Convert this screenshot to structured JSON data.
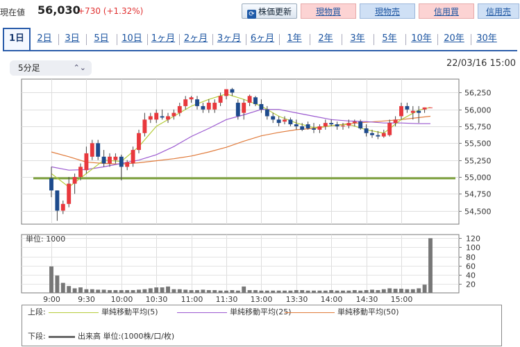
{
  "header": {
    "price_label": "現在値",
    "price": "56,030",
    "change": "+730 (+1.32%)",
    "update_label": "株価更新",
    "update_icon": "refresh-icon",
    "buttons": [
      {
        "label": "現物買",
        "kind": "buy"
      },
      {
        "label": "現物売",
        "kind": "sell"
      },
      {
        "label": "信用買",
        "kind": "buy"
      },
      {
        "label": "信用売",
        "kind": "sell"
      }
    ]
  },
  "tabs": [
    "1日",
    "2日",
    "3日",
    "5日",
    "10日",
    "1ヶ月",
    "2ヶ月",
    "3ヶ月",
    "6ヶ月",
    "1年",
    "2年",
    "3年",
    "5年",
    "10年",
    "20年",
    "30年"
  ],
  "active_tab": 0,
  "interval": {
    "label": "5分足",
    "icon": "chevron-updown-icon"
  },
  "datetime": "22/03/16 15:00",
  "colors": {
    "up": "#e8383d",
    "down": "#1d4a8c",
    "ma5": "#b5cc3a",
    "ma25": "#9b59d0",
    "ma50": "#e07a3a",
    "support": "#7ca03c",
    "volume": "#777777"
  },
  "chart_data": [
    {
      "type": "candlestick",
      "title": "",
      "y_ticks": [
        "56,250",
        "56,000",
        "55,750",
        "55,500",
        "55,250",
        "55,000",
        "54,750",
        "54,500"
      ],
      "y_tick_values": [
        56250,
        56000,
        55750,
        55500,
        55250,
        55000,
        54750,
        54500
      ],
      "ylim": [
        54300,
        56450
      ],
      "x_ticks": [
        "9:00",
        "9:30",
        "10:00",
        "10:30",
        "11:00",
        "11:30",
        "13:00",
        "13:30",
        "14:00",
        "14:30",
        "15:00"
      ],
      "support_level": 54980,
      "candles": [
        {
          "o": 54980,
          "h": 55150,
          "l": 54700,
          "c": 54800
        },
        {
          "o": 54800,
          "h": 54800,
          "l": 54350,
          "c": 54500
        },
        {
          "o": 54500,
          "h": 54650,
          "l": 54450,
          "c": 54600
        },
        {
          "o": 54600,
          "h": 55000,
          "l": 54550,
          "c": 54900
        },
        {
          "o": 54900,
          "h": 55050,
          "l": 54750,
          "c": 55000
        },
        {
          "o": 55000,
          "h": 55200,
          "l": 54950,
          "c": 55150
        },
        {
          "o": 55100,
          "h": 55450,
          "l": 55050,
          "c": 55350
        },
        {
          "o": 55300,
          "h": 55550,
          "l": 55250,
          "c": 55500
        },
        {
          "o": 55500,
          "h": 55550,
          "l": 55250,
          "c": 55300
        },
        {
          "o": 55300,
          "h": 55400,
          "l": 55150,
          "c": 55200
        },
        {
          "o": 55200,
          "h": 55350,
          "l": 55150,
          "c": 55300
        },
        {
          "o": 55250,
          "h": 55350,
          "l": 55200,
          "c": 55300
        },
        {
          "o": 55300,
          "h": 55330,
          "l": 54950,
          "c": 55150
        },
        {
          "o": 55150,
          "h": 55250,
          "l": 55100,
          "c": 55220
        },
        {
          "o": 55200,
          "h": 55450,
          "l": 55150,
          "c": 55400
        },
        {
          "o": 55400,
          "h": 55700,
          "l": 55350,
          "c": 55650
        },
        {
          "o": 55650,
          "h": 55950,
          "l": 55600,
          "c": 55850
        },
        {
          "o": 55850,
          "h": 55950,
          "l": 55800,
          "c": 55900
        },
        {
          "o": 55850,
          "h": 56000,
          "l": 55800,
          "c": 55950
        },
        {
          "o": 55900,
          "h": 56000,
          "l": 55850,
          "c": 55880
        },
        {
          "o": 55850,
          "h": 55950,
          "l": 55800,
          "c": 55900
        },
        {
          "o": 55900,
          "h": 56000,
          "l": 55850,
          "c": 55950
        },
        {
          "o": 55950,
          "h": 56100,
          "l": 55900,
          "c": 56050
        },
        {
          "o": 56050,
          "h": 56200,
          "l": 56000,
          "c": 56150
        },
        {
          "o": 56150,
          "h": 56200,
          "l": 56100,
          "c": 56180
        },
        {
          "o": 56150,
          "h": 56200,
          "l": 56000,
          "c": 56050
        },
        {
          "o": 56050,
          "h": 56100,
          "l": 55950,
          "c": 56000
        },
        {
          "o": 56000,
          "h": 56150,
          "l": 55950,
          "c": 56100
        },
        {
          "o": 56000,
          "h": 56150,
          "l": 55950,
          "c": 56100
        },
        {
          "o": 56100,
          "h": 56250,
          "l": 56050,
          "c": 56200
        },
        {
          "o": 56200,
          "h": 56300,
          "l": 56150,
          "c": 56300
        },
        {
          "o": 56300,
          "h": 56320,
          "l": 56200,
          "c": 56250
        },
        {
          "o": 56100,
          "h": 56150,
          "l": 55850,
          "c": 55900
        },
        {
          "o": 55950,
          "h": 56150,
          "l": 55850,
          "c": 56100
        },
        {
          "o": 56100,
          "h": 56220,
          "l": 56050,
          "c": 56200
        },
        {
          "o": 56180,
          "h": 56200,
          "l": 56050,
          "c": 56080
        },
        {
          "o": 56080,
          "h": 56150,
          "l": 55950,
          "c": 56000
        },
        {
          "o": 56000,
          "h": 56050,
          "l": 55850,
          "c": 55900
        },
        {
          "o": 55900,
          "h": 55950,
          "l": 55800,
          "c": 55850
        },
        {
          "o": 55850,
          "h": 55900,
          "l": 55750,
          "c": 55800
        },
        {
          "o": 55820,
          "h": 55900,
          "l": 55780,
          "c": 55850
        },
        {
          "o": 55850,
          "h": 55880,
          "l": 55750,
          "c": 55780
        },
        {
          "o": 55780,
          "h": 55850,
          "l": 55700,
          "c": 55750
        },
        {
          "o": 55750,
          "h": 55800,
          "l": 55680,
          "c": 55700
        },
        {
          "o": 55780,
          "h": 55820,
          "l": 55700,
          "c": 55720
        },
        {
          "o": 55720,
          "h": 55800,
          "l": 55650,
          "c": 55700
        },
        {
          "o": 55700,
          "h": 55780,
          "l": 55650,
          "c": 55750
        },
        {
          "o": 55750,
          "h": 55850,
          "l": 55700,
          "c": 55800
        },
        {
          "o": 55800,
          "h": 55850,
          "l": 55750,
          "c": 55780
        },
        {
          "o": 55780,
          "h": 55820,
          "l": 55700,
          "c": 55750
        },
        {
          "o": 55750,
          "h": 55800,
          "l": 55700,
          "c": 55760
        },
        {
          "o": 55760,
          "h": 55850,
          "l": 55720,
          "c": 55800
        },
        {
          "o": 55800,
          "h": 55850,
          "l": 55750,
          "c": 55820
        },
        {
          "o": 55820,
          "h": 55850,
          "l": 55700,
          "c": 55720
        },
        {
          "o": 55720,
          "h": 55780,
          "l": 55600,
          "c": 55650
        },
        {
          "o": 55650,
          "h": 55700,
          "l": 55580,
          "c": 55620
        },
        {
          "o": 55620,
          "h": 55680,
          "l": 55560,
          "c": 55600
        },
        {
          "o": 55600,
          "h": 55700,
          "l": 55580,
          "c": 55650
        },
        {
          "o": 55620,
          "h": 55850,
          "l": 55600,
          "c": 55800
        },
        {
          "o": 55800,
          "h": 55900,
          "l": 55750,
          "c": 55850
        },
        {
          "o": 55900,
          "h": 56100,
          "l": 55850,
          "c": 56050
        },
        {
          "o": 56050,
          "h": 56100,
          "l": 55950,
          "c": 56000
        },
        {
          "o": 55950,
          "h": 56050,
          "l": 55850,
          "c": 55980
        },
        {
          "o": 55980,
          "h": 56050,
          "l": 55800,
          "c": 55950
        },
        {
          "o": 56000,
          "h": 56030,
          "l": 55950,
          "c": 56030
        },
        {
          "o": 56030,
          "h": 56030,
          "l": 56030,
          "c": 56030
        }
      ],
      "ma5": [
        [
          0,
          55050
        ],
        [
          3,
          54850
        ],
        [
          6,
          55050
        ],
        [
          9,
          55250
        ],
        [
          12,
          55230
        ],
        [
          15,
          55450
        ],
        [
          18,
          55750
        ],
        [
          21,
          55900
        ],
        [
          24,
          56050
        ],
        [
          27,
          56150
        ],
        [
          30,
          56230
        ],
        [
          33,
          56150
        ],
        [
          36,
          56050
        ],
        [
          39,
          55900
        ],
        [
          42,
          55800
        ],
        [
          45,
          55730
        ],
        [
          48,
          55760
        ],
        [
          51,
          55780
        ],
        [
          54,
          55700
        ],
        [
          57,
          55650
        ],
        [
          60,
          55850
        ],
        [
          63,
          55990
        ],
        [
          65,
          56030
        ]
      ],
      "ma25": [
        [
          0,
          55150
        ],
        [
          3,
          55100
        ],
        [
          6,
          55110
        ],
        [
          9,
          55150
        ],
        [
          12,
          55200
        ],
        [
          15,
          55250
        ],
        [
          18,
          55330
        ],
        [
          21,
          55450
        ],
        [
          24,
          55600
        ],
        [
          27,
          55720
        ],
        [
          30,
          55850
        ],
        [
          33,
          55920
        ],
        [
          36,
          56000
        ],
        [
          39,
          56000
        ],
        [
          42,
          55950
        ],
        [
          45,
          55900
        ],
        [
          48,
          55850
        ],
        [
          51,
          55830
        ],
        [
          54,
          55820
        ],
        [
          57,
          55800
        ],
        [
          60,
          55800
        ],
        [
          63,
          55790
        ],
        [
          65,
          55790
        ]
      ],
      "ma50": [
        [
          0,
          55370
        ],
        [
          3,
          55300
        ],
        [
          6,
          55220
        ],
        [
          9,
          55200
        ],
        [
          12,
          55190
        ],
        [
          15,
          55210
        ],
        [
          18,
          55240
        ],
        [
          21,
          55270
        ],
        [
          24,
          55310
        ],
        [
          27,
          55370
        ],
        [
          30,
          55440
        ],
        [
          33,
          55530
        ],
        [
          36,
          55610
        ],
        [
          39,
          55660
        ],
        [
          42,
          55700
        ],
        [
          45,
          55720
        ],
        [
          48,
          55760
        ],
        [
          51,
          55790
        ],
        [
          54,
          55810
        ],
        [
          57,
          55830
        ],
        [
          60,
          55850
        ],
        [
          63,
          55880
        ],
        [
          65,
          55900
        ]
      ]
    },
    {
      "type": "bar",
      "title": "単位: 1000",
      "y_ticks": [
        "120",
        "100",
        "80",
        "60",
        "40",
        "20"
      ],
      "y_tick_values": [
        120,
        100,
        80,
        60,
        40,
        20
      ],
      "ylim": [
        0,
        128
      ],
      "values": [
        58,
        38,
        22,
        15,
        10,
        12,
        8,
        8,
        7,
        7,
        6,
        6,
        6,
        6,
        6,
        7,
        8,
        10,
        12,
        12,
        14,
        8,
        8,
        7,
        6,
        6,
        7,
        6,
        6,
        5,
        5,
        6,
        5,
        14,
        6,
        6,
        5,
        5,
        5,
        5,
        5,
        5,
        6,
        6,
        5,
        5,
        5,
        5,
        6,
        5,
        5,
        5,
        6,
        5,
        6,
        7,
        6,
        8,
        10,
        9,
        9,
        8,
        8,
        10,
        18,
        120
      ]
    }
  ],
  "legend": {
    "upper_label": "上段:",
    "lower_label": "下段:",
    "items": [
      {
        "label": "単純移動平均(5)",
        "color_key": "ma5"
      },
      {
        "label": "単純移動平均(25)",
        "color_key": "ma25"
      },
      {
        "label": "単純移動平均(50)",
        "color_key": "ma50"
      }
    ],
    "volume_label": "出来高 単位:(1000株/口/枚)"
  }
}
